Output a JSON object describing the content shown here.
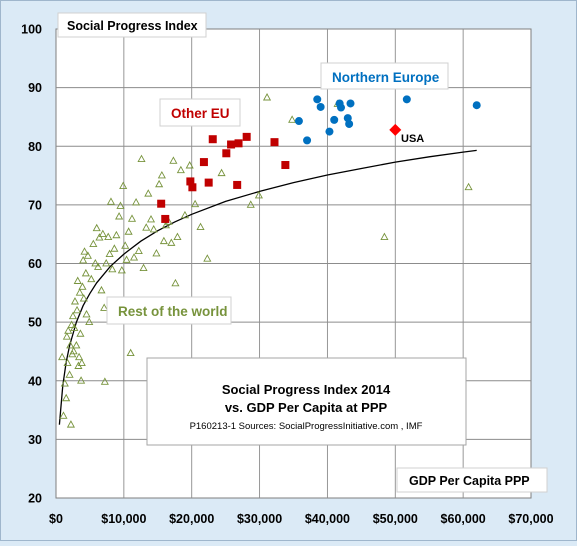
{
  "chart_data": {
    "type": "scatter",
    "title_lines": [
      "Social Progress Index 2014",
      "vs. GDP Per Capita at PPP"
    ],
    "source": "P160213-1 Sources: SocialProgressInitiative.com , IMF",
    "ylabel": "Social Progress Index",
    "xlabel": "GDP Per Capita PPP",
    "xlim": [
      0,
      70000
    ],
    "ylim": [
      20,
      100
    ],
    "x_ticks": [
      {
        "value": 0,
        "label": "$0"
      },
      {
        "value": 10000,
        "label": "$10,000"
      },
      {
        "value": 20000,
        "label": "$20,000"
      },
      {
        "value": 30000,
        "label": "$30,000"
      },
      {
        "value": 40000,
        "label": "$40,000"
      },
      {
        "value": 50000,
        "label": "$50,000"
      },
      {
        "value": 60000,
        "label": "$60,000"
      },
      {
        "value": 70000,
        "label": "$70,000"
      }
    ],
    "y_ticks": [
      {
        "value": 20,
        "label": "20"
      },
      {
        "value": 30,
        "label": "30"
      },
      {
        "value": 40,
        "label": "40"
      },
      {
        "value": 50,
        "label": "50"
      },
      {
        "value": 60,
        "label": "60"
      },
      {
        "value": 70,
        "label": "70"
      },
      {
        "value": 80,
        "label": "80"
      },
      {
        "value": 90,
        "label": "90"
      },
      {
        "value": 100,
        "label": "100"
      }
    ],
    "grid": true,
    "colors": {
      "plot_bg": "#ffffff",
      "grid": "#8c8c8c",
      "frame": "#7f7f7f",
      "page_bg": "#dbeaf6",
      "rest_of_world": "#77933c",
      "other_eu": "#c00000",
      "northern_europe": "#0070c0",
      "usa": "#ff0000",
      "trend": "#000000"
    },
    "series": [
      {
        "name": "Northern Europe",
        "marker": "circle",
        "points": [
          [
            35800,
            84.3
          ],
          [
            37000,
            81
          ],
          [
            38500,
            88
          ],
          [
            39000,
            86.7
          ],
          [
            40300,
            82.5
          ],
          [
            41000,
            84.5
          ],
          [
            41800,
            87.3
          ],
          [
            42000,
            86.6
          ],
          [
            43000,
            84.8
          ],
          [
            43200,
            83.8
          ],
          [
            43400,
            87.3
          ],
          [
            51700,
            88
          ],
          [
            62000,
            87
          ]
        ]
      },
      {
        "name": "Other EU",
        "marker": "square",
        "points": [
          [
            15500,
            70.2
          ],
          [
            16100,
            67.6
          ],
          [
            19800,
            74
          ],
          [
            20100,
            73
          ],
          [
            21800,
            77.3
          ],
          [
            22500,
            73.8
          ],
          [
            23100,
            81.2
          ],
          [
            25100,
            78.8
          ],
          [
            25800,
            80.3
          ],
          [
            26700,
            73.4
          ],
          [
            26900,
            80.5
          ],
          [
            28100,
            81.6
          ],
          [
            32200,
            80.7
          ],
          [
            33800,
            76.8
          ]
        ]
      },
      {
        "name": "USA",
        "marker": "diamond",
        "points": [
          [
            50000,
            82.8
          ]
        ]
      },
      {
        "name": "Rest of the world",
        "marker": "triangle",
        "points": [
          [
            900,
            44
          ],
          [
            1100,
            34
          ],
          [
            1300,
            39.5
          ],
          [
            1500,
            37
          ],
          [
            1600,
            47.5
          ],
          [
            1700,
            43
          ],
          [
            1800,
            48.5
          ],
          [
            2000,
            41
          ],
          [
            2100,
            46
          ],
          [
            2200,
            32.5
          ],
          [
            2300,
            49.5
          ],
          [
            2400,
            44.5
          ],
          [
            2500,
            51
          ],
          [
            2600,
            45
          ],
          [
            2700,
            49
          ],
          [
            2800,
            53.5
          ],
          [
            3000,
            46
          ],
          [
            3100,
            52
          ],
          [
            3200,
            57
          ],
          [
            3300,
            42.5
          ],
          [
            3400,
            44
          ],
          [
            3500,
            55
          ],
          [
            3600,
            48
          ],
          [
            3700,
            40
          ],
          [
            3800,
            43
          ],
          [
            3900,
            56
          ],
          [
            4000,
            60.5
          ],
          [
            4100,
            54
          ],
          [
            4200,
            62
          ],
          [
            4400,
            58.3
          ],
          [
            4500,
            51.3
          ],
          [
            4700,
            61.3
          ],
          [
            4900,
            50
          ],
          [
            5200,
            57.3
          ],
          [
            5500,
            63.3
          ],
          [
            5800,
            60
          ],
          [
            6000,
            66
          ],
          [
            6200,
            59.4
          ],
          [
            6400,
            64.4
          ],
          [
            6700,
            55.4
          ],
          [
            6900,
            65
          ],
          [
            7100,
            52.4
          ],
          [
            7200,
            39.8
          ],
          [
            7400,
            60
          ],
          [
            7700,
            64.5
          ],
          [
            7900,
            61.6
          ],
          [
            8100,
            70.5
          ],
          [
            8300,
            59
          ],
          [
            8600,
            62.5
          ],
          [
            8900,
            64.8
          ],
          [
            9300,
            68
          ],
          [
            9500,
            69.8
          ],
          [
            9700,
            58.8
          ],
          [
            9900,
            73.2
          ],
          [
            10200,
            63
          ],
          [
            10400,
            60.6
          ],
          [
            10700,
            65.4
          ],
          [
            11000,
            44.7
          ],
          [
            11200,
            67.6
          ],
          [
            11500,
            61
          ],
          [
            11800,
            70.4
          ],
          [
            12200,
            62.1
          ],
          [
            12600,
            77.8
          ],
          [
            12900,
            59.2
          ],
          [
            13300,
            66.1
          ],
          [
            13600,
            71.9
          ],
          [
            14000,
            67.5
          ],
          [
            14400,
            65.8
          ],
          [
            14800,
            61.7
          ],
          [
            15200,
            73.5
          ],
          [
            15600,
            75
          ],
          [
            15900,
            63.8
          ],
          [
            16200,
            66.5
          ],
          [
            16600,
            67.1
          ],
          [
            17000,
            63.5
          ],
          [
            17300,
            77.5
          ],
          [
            17600,
            56.6
          ],
          [
            17900,
            64.5
          ],
          [
            18400,
            75.9
          ],
          [
            19000,
            68.2
          ],
          [
            19700,
            76.7
          ],
          [
            20500,
            70.1
          ],
          [
            21300,
            66.2
          ],
          [
            22300,
            60.8
          ],
          [
            24400,
            75.4
          ],
          [
            28700,
            70
          ],
          [
            29900,
            71.6
          ],
          [
            31100,
            88.3
          ],
          [
            34800,
            84.5
          ],
          [
            41500,
            87.2
          ],
          [
            48400,
            64.5
          ],
          [
            60800,
            73
          ]
        ]
      }
    ],
    "trend_line": [
      [
        500,
        32.5
      ],
      [
        1000,
        39.2
      ],
      [
        1500,
        43.2
      ],
      [
        2000,
        46.0
      ],
      [
        3000,
        50.0
      ],
      [
        4000,
        52.8
      ],
      [
        5000,
        54.9
      ],
      [
        6000,
        56.7
      ],
      [
        8000,
        59.5
      ],
      [
        10000,
        61.6
      ],
      [
        12500,
        63.8
      ],
      [
        15000,
        65.6
      ],
      [
        17500,
        67.1
      ],
      [
        20000,
        68.4
      ],
      [
        25000,
        70.6
      ],
      [
        30000,
        72.3
      ],
      [
        35000,
        73.8
      ],
      [
        40000,
        75.1
      ],
      [
        45000,
        76.2
      ],
      [
        50000,
        77.3
      ],
      [
        55000,
        78.2
      ],
      [
        60000,
        79.0
      ],
      [
        62000,
        79.3
      ]
    ],
    "annotations": [
      {
        "text": "Northern Europe",
        "color": "#0070c0"
      },
      {
        "text": "Other EU",
        "color": "#c00000"
      },
      {
        "text": "USA",
        "color": "#000000"
      },
      {
        "text": "Rest of the world",
        "color": "#77933c"
      }
    ]
  }
}
